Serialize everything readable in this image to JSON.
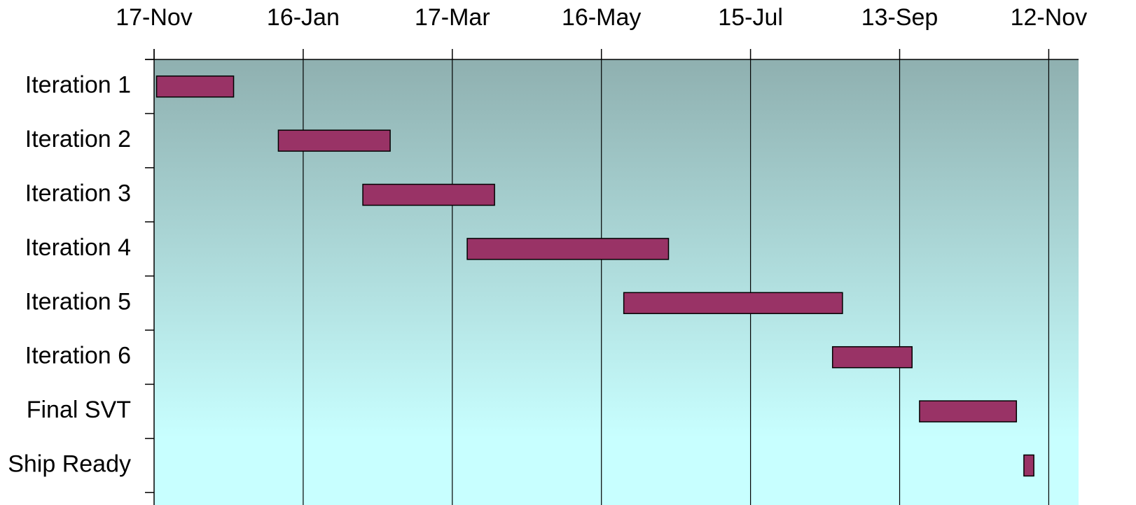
{
  "chart_data": {
    "type": "gantt",
    "categories": [
      "Iteration 1",
      "Iteration 2",
      "Iteration 3",
      "Iteration 4",
      "Iteration 5",
      "Iteration 6",
      "Final SVT",
      "Ship Ready"
    ],
    "start": [
      1,
      50,
      84,
      126,
      189,
      273,
      308,
      350
    ],
    "end": [
      32,
      95,
      137,
      207,
      277,
      305,
      347,
      354
    ],
    "color": "#993366",
    "xlim": [
      0,
      372
    ],
    "xticks": [
      {
        "value": 0,
        "label": "17-Nov"
      },
      {
        "value": 60,
        "label": "16-Jan"
      },
      {
        "value": 120,
        "label": "17-Mar"
      },
      {
        "value": 180,
        "label": "16-May"
      },
      {
        "value": 240,
        "label": "15-Jul"
      },
      {
        "value": 300,
        "label": "13-Sep"
      },
      {
        "value": 360,
        "label": "12-Nov"
      }
    ],
    "grid": true
  }
}
